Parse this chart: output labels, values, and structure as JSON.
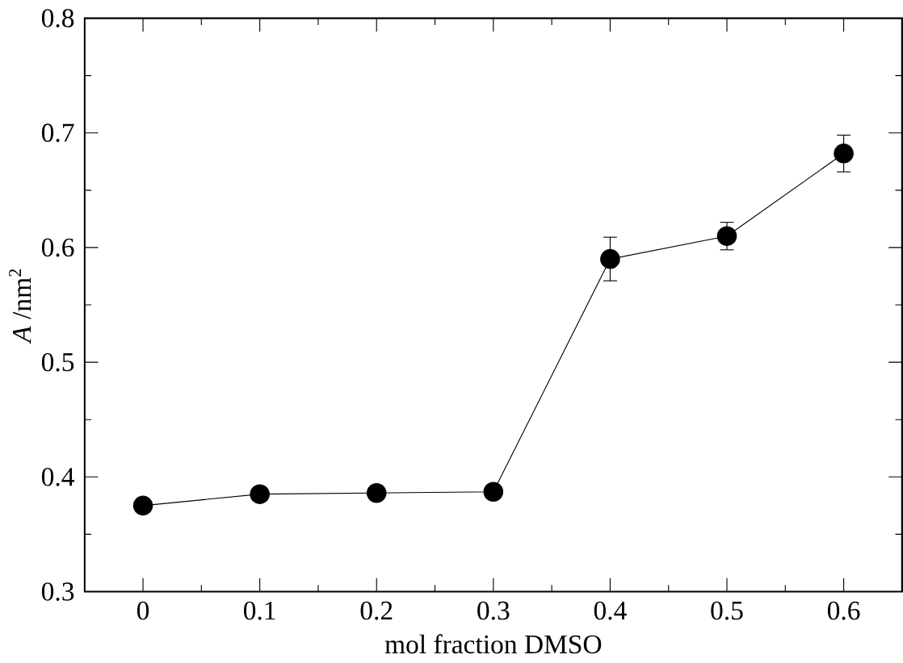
{
  "chart_data": {
    "type": "line",
    "xlabel": "mol fraction DMSO",
    "ylabel": "*A* /nm$^{2}$",
    "x": [
      0,
      0.1,
      0.2,
      0.3,
      0.4,
      0.5,
      0.6
    ],
    "series": [
      {
        "color": "#000000",
        "values": [
          0.375,
          0.385,
          0.386,
          0.387,
          0.59,
          0.61,
          0.682
        ],
        "errors": [
          null,
          null,
          null,
          null,
          0.019,
          0.012,
          0.016
        ]
      }
    ],
    "xlim": [
      -0.05,
      0.65
    ],
    "xticks": [
      0,
      0.1,
      0.2,
      0.3,
      0.4,
      0.5,
      0.6
    ],
    "ylim": [
      0.3,
      0.8
    ],
    "yticks": [
      0.3,
      0.4,
      0.5,
      0.6,
      0.7,
      0.8
    ],
    "marker": "circle",
    "line_style": "solid"
  }
}
